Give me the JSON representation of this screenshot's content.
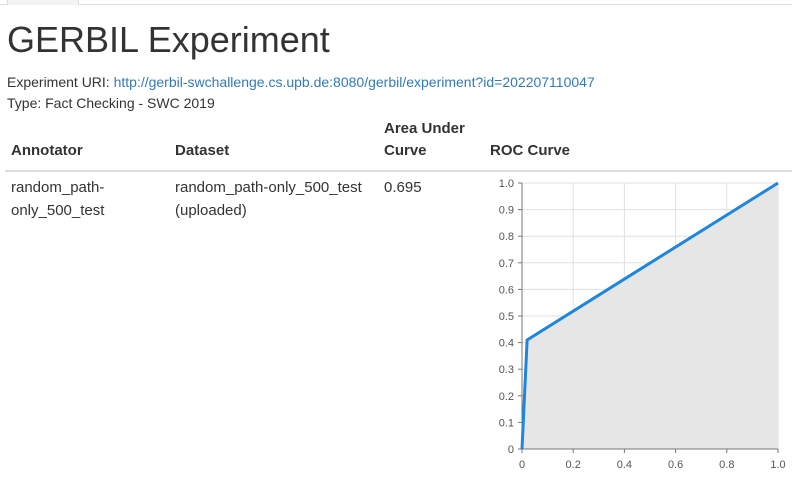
{
  "page": {
    "title": "GERBIL Experiment",
    "uri_label": "Experiment URI:",
    "uri_link": "http://gerbil-swchallenge.cs.upb.de:8080/gerbil/experiment?id=202207110047",
    "type_line": "Type: Fact Checking - SWC 2019"
  },
  "table": {
    "headers": {
      "annotator": "Annotator",
      "dataset": "Dataset",
      "auc_line1": "Area Under",
      "auc_line2": "Curve",
      "roc": "ROC Curve"
    },
    "rows": [
      {
        "annotator_line1": "random_path-",
        "annotator_line2": "only_500_test",
        "dataset_line1": "random_path-only_500_test",
        "dataset_line2": "(uploaded)",
        "auc": "0.695"
      }
    ]
  },
  "colors": {
    "line": "#1f86dc",
    "fill": "#e6e6e6",
    "grid": "#e0e0e0",
    "link": "#337ab7"
  },
  "chart_data": {
    "type": "line",
    "x": [
      0,
      0.02,
      1.0
    ],
    "y": [
      0,
      0.41,
      1.0
    ],
    "xlim": [
      0,
      1
    ],
    "ylim": [
      0,
      1
    ],
    "xticks": [
      "0",
      "0.2",
      "0.4",
      "0.6",
      "0.8",
      "1.0"
    ],
    "yticks": [
      "0",
      "0.1",
      "0.2",
      "0.3",
      "0.4",
      "0.5",
      "0.6",
      "0.7",
      "0.8",
      "0.9",
      "1.0"
    ],
    "area_fill": true,
    "grid": true
  }
}
